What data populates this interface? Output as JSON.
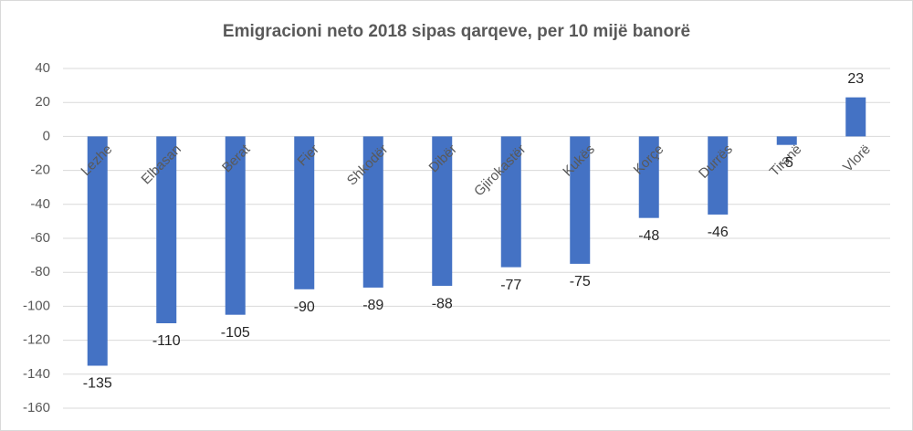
{
  "chart_data": {
    "type": "bar",
    "title": "Emigracioni neto 2018 sipas qarqeve, per 10 mijë banorë",
    "categories": [
      "Lezhe",
      "Elbasan",
      "Berat",
      "Fier",
      "Shkodër",
      "Dibër",
      "Gjirokastër",
      "Kukës",
      "Korçe",
      "Durrës",
      "Tiranë",
      "Vlorë"
    ],
    "values": [
      -135,
      -110,
      -105,
      -90,
      -89,
      -88,
      -77,
      -75,
      -48,
      -46,
      -5,
      23
    ],
    "color": "#4472c4",
    "ylim": [
      -160,
      40
    ],
    "yticks": [
      -160,
      -140,
      -120,
      -100,
      -80,
      -60,
      -40,
      -20,
      0,
      20,
      40
    ],
    "grid": true
  }
}
